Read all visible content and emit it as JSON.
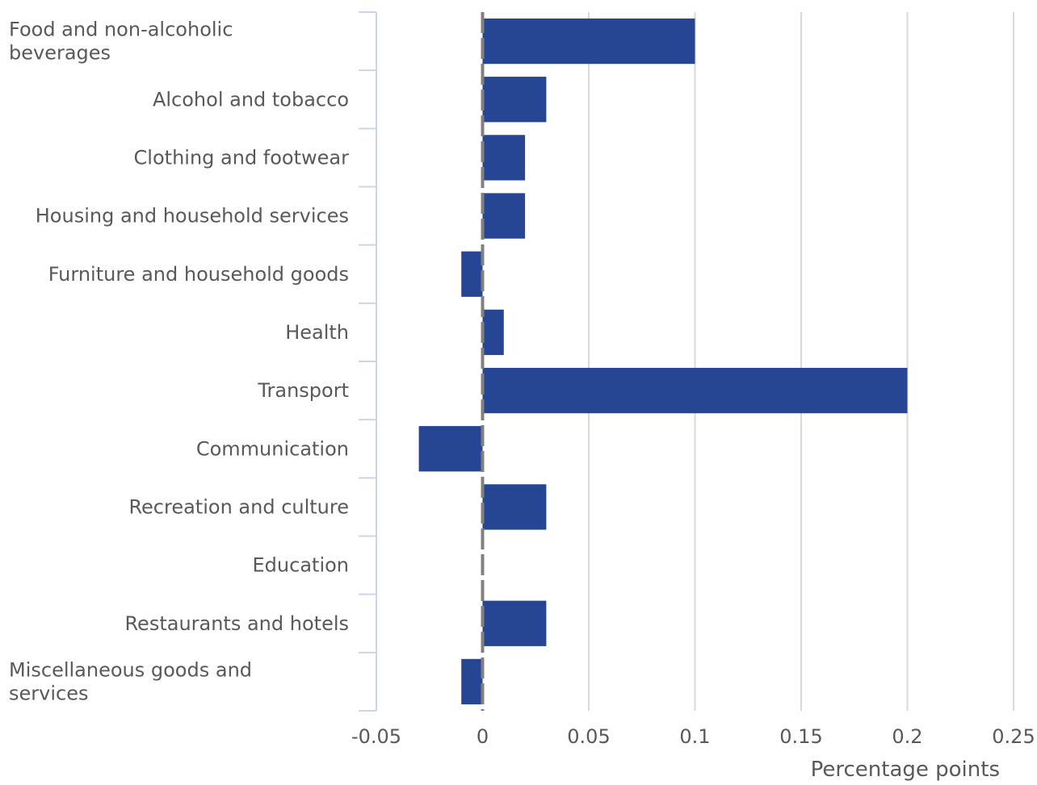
{
  "chart_data": {
    "type": "bar",
    "orientation": "horizontal",
    "categories": [
      "Food and non-alcoholic beverages",
      "Alcohol and tobacco",
      "Clothing and footwear",
      "Housing and household services",
      "Furniture and household goods",
      "Health",
      "Transport",
      "Communication",
      "Recreation and culture",
      "Education",
      "Restaurants and hotels",
      "Miscellaneous goods and services"
    ],
    "category_display": [
      [
        "Food and non-alcoholic",
        "beverages"
      ],
      [
        "Alcohol and tobacco"
      ],
      [
        "Clothing and footwear"
      ],
      [
        "Housing and household services"
      ],
      [
        "Furniture and household goods"
      ],
      [
        "Health"
      ],
      [
        "Transport"
      ],
      [
        "Communication"
      ],
      [
        "Recreation and culture"
      ],
      [
        "Education"
      ],
      [
        "Restaurants and hotels"
      ],
      [
        "Miscellaneous goods and",
        "services"
      ]
    ],
    "values": [
      0.1,
      0.03,
      0.02,
      0.02,
      -0.01,
      0.01,
      0.2,
      -0.03,
      0.03,
      0,
      0.03,
      -0.01
    ],
    "xlabel": "Percentage points",
    "xlim": [
      -0.05,
      0.25
    ],
    "xticks": [
      -0.05,
      0,
      0.05,
      0.1,
      0.15,
      0.2,
      0.25
    ],
    "xtick_labels": [
      "-0.05",
      "0",
      "0.05",
      "0.1",
      "0.15",
      "0.2",
      "0.25"
    ],
    "grid": true,
    "colors": {
      "bar": "#264694",
      "grid": "#d9d9d9",
      "zero_line": "#808080",
      "axis": "#c9d6ea",
      "text": "#595959"
    }
  }
}
